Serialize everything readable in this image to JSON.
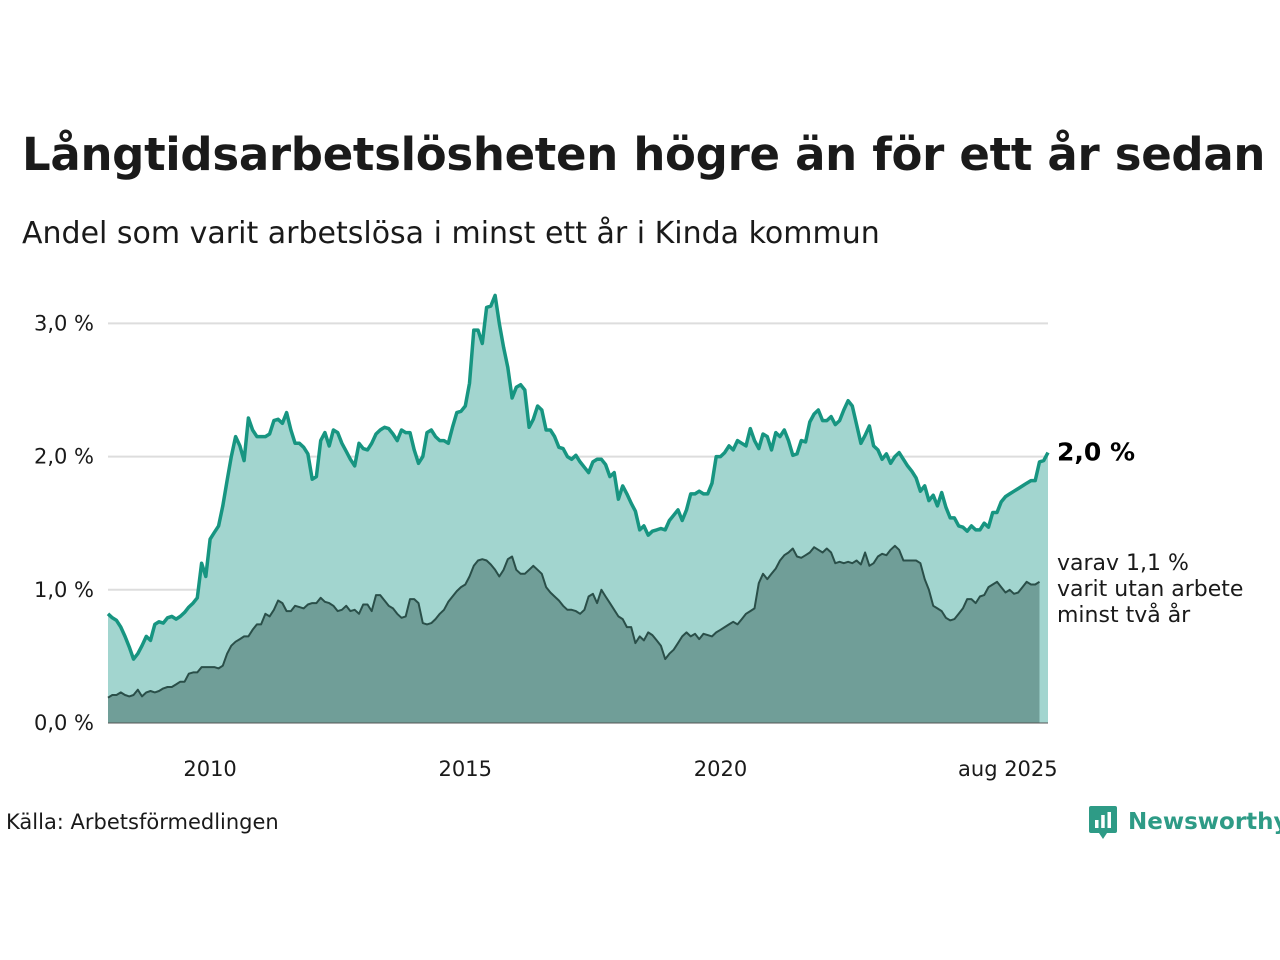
{
  "header": {
    "title": "Långtidsarbetslösheten högre än för ett år sedan",
    "subtitle": "Andel som varit arbetslösa i minst ett år i Kinda kommun"
  },
  "footer": {
    "source": "Källa: Arbetsförmedlingen",
    "brand": "Newsworthy"
  },
  "colors": {
    "main_line": "#179581",
    "main_fill": "#a2d5cf",
    "sub_line": "#2a4f49",
    "sub_fill": "#709e98",
    "grid": "#dddddd",
    "brand": "#2e9b86"
  },
  "chart_data": {
    "type": "area",
    "title": "Långtidsarbetslösheten högre än för ett år sedan",
    "subtitle": "Andel som varit arbetslösa i minst ett år i Kinda kommun",
    "x_start": "2008-01",
    "x_end": "2025-08",
    "x_ticks": [
      {
        "label": "2010",
        "year": 2010
      },
      {
        "label": "2015",
        "year": 2015
      },
      {
        "label": "2020",
        "year": 2020
      },
      {
        "label": "aug 2025",
        "year": 2025.63
      }
    ],
    "y_ticks": [
      {
        "label": "0,0 %",
        "value": 0
      },
      {
        "label": "1,0 %",
        "value": 1
      },
      {
        "label": "2,0 %",
        "value": 2
      },
      {
        "label": "3,0 %",
        "value": 3
      }
    ],
    "ylim": [
      0,
      3.3
    ],
    "grid": true,
    "end_labels": {
      "main": "2,0 %",
      "sub": [
        "varav 1,1 %",
        "varit utan arbete",
        "minst två år"
      ]
    },
    "series": [
      {
        "name": "Minst ett år",
        "values": [
          0.82,
          0.79,
          0.77,
          0.72,
          0.65,
          0.57,
          0.48,
          0.52,
          0.58,
          0.65,
          0.62,
          0.74,
          0.76,
          0.75,
          0.79,
          0.8,
          0.78,
          0.8,
          0.83,
          0.87,
          0.9,
          0.94,
          1.2,
          1.1,
          1.38,
          1.43,
          1.48,
          1.63,
          1.82,
          2.0,
          2.15,
          2.08,
          1.97,
          2.29,
          2.2,
          2.15,
          2.15,
          2.15,
          2.17,
          2.27,
          2.28,
          2.25,
          2.33,
          2.2,
          2.1,
          2.1,
          2.07,
          2.02,
          1.83,
          1.85,
          2.12,
          2.18,
          2.08,
          2.2,
          2.18,
          2.1,
          2.04,
          1.98,
          1.93,
          2.1,
          2.06,
          2.05,
          2.1,
          2.17,
          2.2,
          2.22,
          2.21,
          2.17,
          2.12,
          2.2,
          2.18,
          2.18,
          2.05,
          1.95,
          2.0,
          2.18,
          2.2,
          2.15,
          2.12,
          2.12,
          2.1,
          2.22,
          2.33,
          2.34,
          2.38,
          2.55,
          2.95,
          2.95,
          2.85,
          3.12,
          3.13,
          3.21,
          3.0,
          2.82,
          2.67,
          2.44,
          2.52,
          2.54,
          2.5,
          2.22,
          2.28,
          2.38,
          2.35,
          2.2,
          2.2,
          2.15,
          2.07,
          2.06,
          2.0,
          1.98,
          2.01,
          1.96,
          1.92,
          1.88,
          1.96,
          1.98,
          1.98,
          1.94,
          1.85,
          1.88,
          1.68,
          1.78,
          1.72,
          1.65,
          1.59,
          1.45,
          1.48,
          1.41,
          1.44,
          1.45,
          1.46,
          1.45,
          1.52,
          1.56,
          1.6,
          1.52,
          1.6,
          1.72,
          1.72,
          1.74,
          1.72,
          1.72,
          1.8,
          2.0,
          2.0,
          2.03,
          2.08,
          2.05,
          2.12,
          2.1,
          2.08,
          2.21,
          2.12,
          2.06,
          2.17,
          2.15,
          2.05,
          2.18,
          2.15,
          2.2,
          2.12,
          2.01,
          2.02,
          2.12,
          2.11,
          2.26,
          2.32,
          2.35,
          2.27,
          2.27,
          2.3,
          2.24,
          2.27,
          2.35,
          2.42,
          2.38,
          2.24,
          2.1,
          2.16,
          2.23,
          2.08,
          2.05,
          1.98,
          2.02,
          1.95,
          2.0,
          2.03,
          1.98,
          1.93,
          1.89,
          1.84,
          1.74,
          1.78,
          1.67,
          1.71,
          1.63,
          1.73,
          1.62,
          1.54,
          1.54,
          1.48,
          1.47,
          1.44,
          1.48,
          1.45,
          1.45,
          1.5,
          1.47,
          1.58,
          1.58,
          1.66,
          1.7,
          1.72,
          1.74,
          1.76,
          1.78,
          1.8,
          1.82,
          1.82,
          1.96,
          1.97,
          2.03
        ]
      },
      {
        "name": "varav minst två år",
        "values": [
          0.19,
          0.21,
          0.21,
          0.23,
          0.21,
          0.2,
          0.21,
          0.25,
          0.2,
          0.23,
          0.24,
          0.23,
          0.24,
          0.26,
          0.27,
          0.27,
          0.29,
          0.31,
          0.31,
          0.37,
          0.38,
          0.38,
          0.42,
          0.42,
          0.42,
          0.42,
          0.41,
          0.43,
          0.52,
          0.58,
          0.61,
          0.63,
          0.65,
          0.65,
          0.7,
          0.74,
          0.74,
          0.82,
          0.8,
          0.85,
          0.92,
          0.9,
          0.84,
          0.84,
          0.88,
          0.87,
          0.86,
          0.89,
          0.9,
          0.9,
          0.94,
          0.91,
          0.9,
          0.88,
          0.84,
          0.85,
          0.88,
          0.84,
          0.85,
          0.82,
          0.89,
          0.89,
          0.84,
          0.96,
          0.96,
          0.92,
          0.88,
          0.86,
          0.82,
          0.79,
          0.8,
          0.93,
          0.93,
          0.9,
          0.75,
          0.74,
          0.75,
          0.78,
          0.82,
          0.85,
          0.91,
          0.95,
          0.99,
          1.02,
          1.04,
          1.1,
          1.18,
          1.22,
          1.23,
          1.22,
          1.19,
          1.15,
          1.1,
          1.15,
          1.23,
          1.25,
          1.15,
          1.12,
          1.12,
          1.15,
          1.18,
          1.15,
          1.12,
          1.02,
          0.98,
          0.95,
          0.92,
          0.88,
          0.85,
          0.85,
          0.84,
          0.82,
          0.85,
          0.95,
          0.97,
          0.9,
          1.0,
          0.95,
          0.9,
          0.85,
          0.8,
          0.78,
          0.72,
          0.72,
          0.6,
          0.65,
          0.62,
          0.68,
          0.66,
          0.62,
          0.58,
          0.48,
          0.52,
          0.55,
          0.6,
          0.65,
          0.68,
          0.65,
          0.67,
          0.63,
          0.67,
          0.66,
          0.65,
          0.68,
          0.7,
          0.72,
          0.74,
          0.76,
          0.74,
          0.78,
          0.82,
          0.84,
          0.86,
          1.05,
          1.12,
          1.08,
          1.12,
          1.16,
          1.22,
          1.26,
          1.28,
          1.31,
          1.25,
          1.24,
          1.26,
          1.28,
          1.32,
          1.3,
          1.28,
          1.31,
          1.28,
          1.2,
          1.21,
          1.2,
          1.21,
          1.2,
          1.22,
          1.19,
          1.28,
          1.18,
          1.2,
          1.25,
          1.27,
          1.26,
          1.3,
          1.33,
          1.3,
          1.22,
          1.22,
          1.22,
          1.22,
          1.2,
          1.08,
          1.0,
          0.88,
          0.86,
          0.84,
          0.79,
          0.77,
          0.78,
          0.82,
          0.86,
          0.93,
          0.93,
          0.9,
          0.95,
          0.96,
          1.02,
          1.04,
          1.06,
          1.02,
          0.98,
          1.0,
          0.97,
          0.98,
          1.02,
          1.06,
          1.04,
          1.04,
          1.06
        ]
      }
    ]
  }
}
